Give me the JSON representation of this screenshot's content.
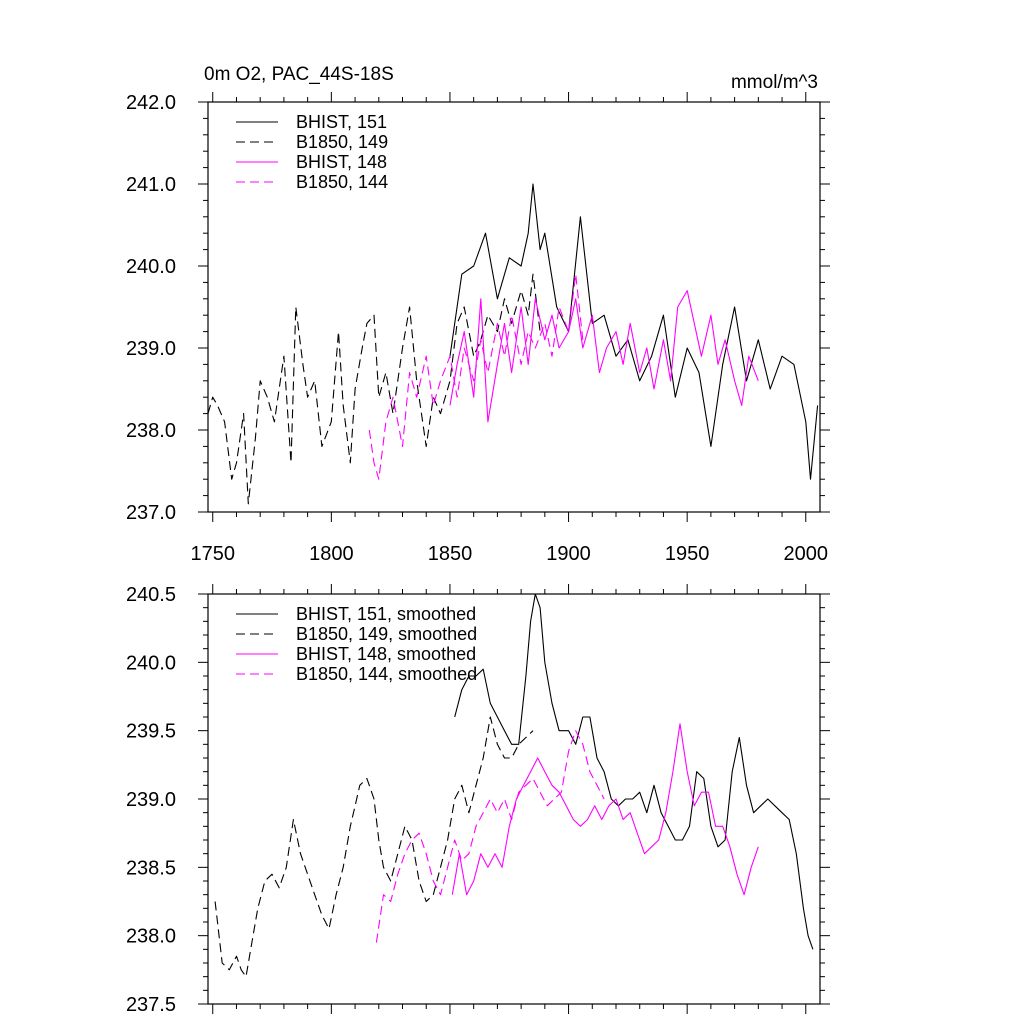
{
  "chart_data": [
    {
      "type": "line",
      "title": "0m O2, PAC_44S-18S",
      "units": "mmol/m^3",
      "xlim": [
        1748,
        2006
      ],
      "ylim": [
        237.0,
        242.0
      ],
      "x_ticks": [
        1750,
        1800,
        1850,
        1900,
        1950,
        2000
      ],
      "x_tick_labels": [
        "1750",
        "1800",
        "1850",
        "1900",
        "1950",
        "2000"
      ],
      "y_ticks": [
        237.0,
        238.0,
        239.0,
        240.0,
        241.0,
        242.0
      ],
      "y_tick_labels": [
        "237.0",
        "238.0",
        "239.0",
        "240.0",
        "241.0",
        "242.0"
      ],
      "legend_position": "top-left",
      "series": [
        {
          "name": "BHIST, 151",
          "color": "#000000",
          "dash": "solid",
          "x": [
            1850,
            1855,
            1860,
            1865,
            1870,
            1875,
            1880,
            1883,
            1885,
            1888,
            1890,
            1895,
            1900,
            1905,
            1910,
            1915,
            1920,
            1925,
            1930,
            1935,
            1940,
            1945,
            1950,
            1955,
            1960,
            1965,
            1970,
            1975,
            1980,
            1985,
            1990,
            1995,
            2000,
            2002,
            2005
          ],
          "y": [
            238.9,
            239.9,
            240.0,
            240.4,
            239.6,
            240.1,
            240.0,
            240.4,
            241.0,
            240.2,
            240.4,
            239.5,
            239.2,
            240.6,
            239.3,
            239.4,
            238.9,
            239.1,
            238.6,
            238.9,
            239.4,
            238.4,
            239.0,
            238.7,
            237.8,
            238.8,
            239.5,
            238.6,
            239.1,
            238.5,
            238.9,
            238.8,
            238.1,
            237.4,
            238.3
          ]
        },
        {
          "name": "B1850, 149",
          "color": "#000000",
          "dash": "dashed",
          "x": [
            1748,
            1750,
            1752,
            1755,
            1758,
            1760,
            1763,
            1765,
            1768,
            1770,
            1773,
            1776,
            1780,
            1783,
            1785,
            1788,
            1790,
            1793,
            1796,
            1800,
            1803,
            1805,
            1808,
            1810,
            1813,
            1815,
            1818,
            1820,
            1823,
            1826,
            1830,
            1833,
            1836,
            1840,
            1843,
            1846,
            1850,
            1853,
            1856,
            1860,
            1863,
            1866,
            1870,
            1873,
            1876,
            1880,
            1883,
            1885,
            1888
          ],
          "y": [
            238.2,
            238.4,
            238.3,
            238.1,
            237.4,
            237.6,
            238.2,
            237.1,
            237.9,
            238.6,
            238.4,
            238.1,
            238.9,
            237.6,
            239.5,
            238.8,
            238.4,
            238.6,
            237.8,
            238.1,
            239.2,
            238.3,
            237.6,
            238.5,
            239.0,
            239.3,
            239.4,
            238.4,
            238.7,
            238.2,
            239.0,
            239.5,
            238.6,
            237.8,
            238.4,
            238.2,
            238.6,
            239.3,
            239.5,
            238.9,
            239.1,
            239.4,
            239.2,
            239.6,
            239.3,
            239.7,
            239.4,
            239.9,
            239.2
          ]
        },
        {
          "name": "BHIST, 148",
          "color": "#ff00ff",
          "dash": "solid",
          "x": [
            1850,
            1853,
            1856,
            1860,
            1863,
            1866,
            1870,
            1873,
            1876,
            1880,
            1883,
            1886,
            1890,
            1893,
            1896,
            1900,
            1903,
            1906,
            1910,
            1913,
            1916,
            1920,
            1923,
            1926,
            1930,
            1933,
            1936,
            1940,
            1943,
            1946,
            1950,
            1953,
            1956,
            1960,
            1963,
            1966,
            1970,
            1973,
            1976,
            1980
          ],
          "y": [
            238.3,
            238.8,
            239.2,
            238.4,
            239.6,
            238.1,
            238.8,
            239.3,
            238.7,
            239.5,
            238.8,
            239.6,
            239.1,
            239.4,
            239.0,
            239.2,
            239.6,
            239.0,
            239.4,
            238.7,
            239.0,
            239.2,
            238.8,
            239.3,
            238.7,
            239.0,
            238.5,
            239.1,
            238.6,
            239.5,
            239.7,
            239.3,
            238.9,
            239.4,
            238.8,
            239.1,
            238.6,
            238.3,
            238.9,
            238.6
          ]
        },
        {
          "name": "B1850, 144",
          "color": "#ff00ff",
          "dash": "dashed",
          "x": [
            1816,
            1818,
            1820,
            1823,
            1826,
            1830,
            1833,
            1836,
            1840,
            1843,
            1846,
            1850,
            1853,
            1856,
            1860,
            1863,
            1866,
            1870,
            1873,
            1876,
            1880,
            1883,
            1886,
            1890,
            1893,
            1896,
            1900,
            1903,
            1906
          ],
          "y": [
            238.0,
            237.6,
            237.4,
            238.1,
            238.4,
            237.8,
            238.7,
            238.4,
            238.9,
            238.3,
            238.6,
            238.9,
            238.4,
            239.0,
            238.6,
            239.1,
            238.7,
            239.3,
            238.9,
            239.4,
            238.8,
            239.2,
            239.0,
            239.3,
            238.9,
            239.5,
            239.2,
            239.9,
            239.1
          ]
        }
      ],
      "legend": [
        "BHIST, 151",
        "B1850, 149",
        "BHIST, 148",
        "B1850, 144"
      ]
    },
    {
      "type": "line",
      "title": "",
      "units": "",
      "xlim": [
        1748,
        2006
      ],
      "ylim": [
        237.5,
        240.5
      ],
      "x_ticks": [
        1750,
        1800,
        1850,
        1900,
        1950,
        2000
      ],
      "x_tick_labels": [],
      "y_ticks": [
        237.5,
        238.0,
        238.5,
        239.0,
        239.5,
        240.0,
        240.5
      ],
      "y_tick_labels": [
        "237.5",
        "238.0",
        "238.5",
        "239.0",
        "239.5",
        "240.0",
        "240.5"
      ],
      "legend_position": "top-left",
      "series": [
        {
          "name": "BHIST, 151, smoothed",
          "color": "#000000",
          "dash": "solid",
          "x": [
            1852,
            1855,
            1858,
            1861,
            1864,
            1867,
            1870,
            1873,
            1876,
            1879,
            1882,
            1884,
            1886,
            1888,
            1890,
            1893,
            1896,
            1900,
            1903,
            1906,
            1909,
            1912,
            1915,
            1918,
            1921,
            1924,
            1927,
            1930,
            1933,
            1936,
            1939,
            1942,
            1945,
            1948,
            1951,
            1954,
            1957,
            1960,
            1963,
            1966,
            1969,
            1972,
            1975,
            1978,
            1981,
            1984,
            1987,
            1990,
            1993,
            1996,
            1999,
            2001,
            2003
          ],
          "y": [
            239.6,
            239.8,
            239.9,
            239.9,
            239.95,
            239.7,
            239.6,
            239.5,
            239.4,
            239.4,
            239.9,
            240.3,
            240.5,
            240.4,
            240.0,
            239.7,
            239.5,
            239.5,
            239.4,
            239.6,
            239.6,
            239.3,
            239.2,
            239.0,
            238.95,
            239.0,
            239.0,
            239.05,
            238.9,
            239.1,
            238.9,
            238.8,
            238.7,
            238.7,
            238.8,
            239.2,
            239.15,
            238.8,
            238.65,
            238.7,
            239.2,
            239.45,
            239.1,
            238.9,
            238.95,
            239.0,
            238.95,
            238.9,
            238.85,
            238.6,
            238.2,
            238.0,
            237.9
          ]
        },
        {
          "name": "B1850, 149, smoothed",
          "color": "#000000",
          "dash": "dashed",
          "x": [
            1751,
            1754,
            1757,
            1760,
            1762,
            1764,
            1766,
            1769,
            1772,
            1775,
            1778,
            1781,
            1784,
            1787,
            1790,
            1793,
            1796,
            1799,
            1802,
            1805,
            1808,
            1810,
            1812,
            1815,
            1818,
            1820,
            1822,
            1825,
            1828,
            1831,
            1834,
            1837,
            1840,
            1843,
            1846,
            1849,
            1852,
            1855,
            1858,
            1861,
            1864,
            1867,
            1870,
            1873,
            1876,
            1879,
            1882,
            1885
          ],
          "y": [
            238.25,
            237.8,
            237.75,
            237.85,
            237.75,
            237.7,
            237.9,
            238.2,
            238.4,
            238.45,
            238.35,
            238.5,
            238.85,
            238.6,
            238.45,
            238.3,
            238.15,
            238.05,
            238.3,
            238.5,
            238.8,
            238.95,
            239.1,
            239.15,
            239.0,
            238.7,
            238.5,
            238.4,
            238.6,
            238.8,
            238.7,
            238.4,
            238.25,
            238.3,
            238.5,
            238.7,
            239.0,
            239.1,
            238.9,
            239.1,
            239.3,
            239.6,
            239.4,
            239.3,
            239.3,
            239.4,
            239.45,
            239.5
          ]
        },
        {
          "name": "BHIST, 148, smoothed",
          "color": "#ff00ff",
          "dash": "solid",
          "x": [
            1851,
            1854,
            1857,
            1860,
            1863,
            1866,
            1869,
            1872,
            1875,
            1878,
            1881,
            1884,
            1887,
            1890,
            1893,
            1896,
            1899,
            1902,
            1905,
            1908,
            1911,
            1914,
            1917,
            1920,
            1923,
            1926,
            1929,
            1932,
            1935,
            1938,
            1941,
            1944,
            1947,
            1950,
            1953,
            1956,
            1959,
            1962,
            1965,
            1968,
            1971,
            1974,
            1977,
            1980
          ],
          "y": [
            238.3,
            238.6,
            238.3,
            238.4,
            238.6,
            238.5,
            238.6,
            238.5,
            238.8,
            239.0,
            239.1,
            239.2,
            239.3,
            239.2,
            239.1,
            239.05,
            238.95,
            238.85,
            238.8,
            238.85,
            238.95,
            238.85,
            238.95,
            239.0,
            238.85,
            238.9,
            238.75,
            238.6,
            238.65,
            238.7,
            238.9,
            239.2,
            239.55,
            239.2,
            238.95,
            239.05,
            239.05,
            238.8,
            238.8,
            238.65,
            238.45,
            238.3,
            238.5,
            238.65
          ]
        },
        {
          "name": "B1850, 144, smoothed",
          "color": "#ff00ff",
          "dash": "dashed",
          "x": [
            1819,
            1822,
            1825,
            1828,
            1831,
            1834,
            1837,
            1840,
            1843,
            1846,
            1849,
            1852,
            1855,
            1858,
            1861,
            1864,
            1867,
            1870,
            1873,
            1876,
            1879,
            1882,
            1885,
            1888,
            1891,
            1894,
            1897,
            1900,
            1903,
            1906,
            1909,
            1912,
            1915
          ],
          "y": [
            237.95,
            238.3,
            238.25,
            238.45,
            238.6,
            238.7,
            238.75,
            238.6,
            238.4,
            238.3,
            238.5,
            238.7,
            238.55,
            238.6,
            238.8,
            238.9,
            239.0,
            238.9,
            239.0,
            238.85,
            239.05,
            239.1,
            239.15,
            239.05,
            238.95,
            239.0,
            239.05,
            239.35,
            239.5,
            239.4,
            239.2,
            239.1,
            239.0
          ]
        }
      ],
      "legend": [
        "BHIST, 151, smoothed",
        "B1850, 149, smoothed",
        "BHIST, 148, smoothed",
        "B1850, 144, smoothed"
      ]
    }
  ]
}
